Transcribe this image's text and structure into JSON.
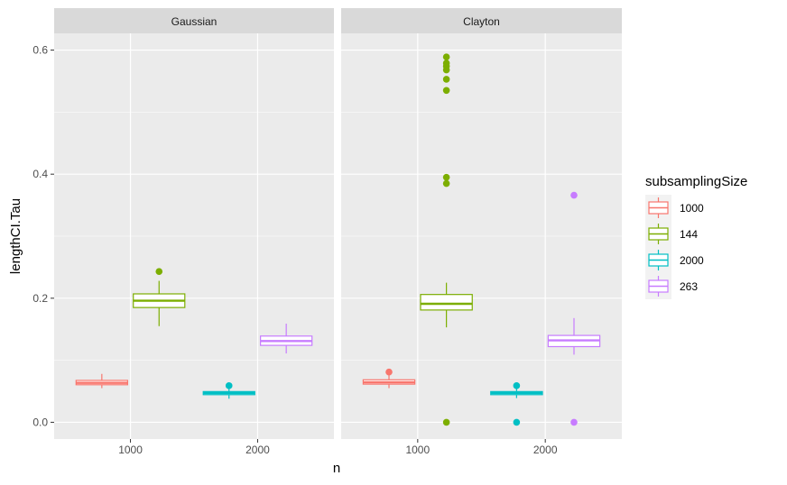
{
  "chart_data": {
    "type": "boxplot",
    "xlabel": "n",
    "ylabel": "lengthCI.Tau",
    "ylim": [
      -0.027,
      0.627
    ],
    "yticks": [
      0.0,
      0.2,
      0.4,
      0.6
    ],
    "ytick_labels": [
      "0.0",
      "0.2",
      "0.4",
      "0.6"
    ],
    "xticks": [
      "1000",
      "2000"
    ],
    "legend": {
      "title": "subsamplingSize",
      "position": "right",
      "entries": [
        {
          "label": "1000",
          "color": "#F8766D"
        },
        {
          "label": "144",
          "color": "#7CAE00"
        },
        {
          "label": "2000",
          "color": "#00BFC4"
        },
        {
          "label": "263",
          "color": "#C77CFF"
        }
      ]
    },
    "panels": [
      {
        "name": "Gaussian",
        "boxes": [
          {
            "n": "1000",
            "group": "1000",
            "min": 0.055,
            "q1": 0.0605,
            "median": 0.0635,
            "q3": 0.0675,
            "max": 0.078,
            "outliers": []
          },
          {
            "n": "1000",
            "group": "144",
            "min": 0.155,
            "q1": 0.185,
            "median": 0.196,
            "q3": 0.207,
            "max": 0.228,
            "outliers": [
              0.243
            ]
          },
          {
            "n": "2000",
            "group": "2000",
            "min": 0.038,
            "q1": 0.0445,
            "median": 0.047,
            "q3": 0.0495,
            "max": 0.055,
            "outliers": [
              0.059
            ]
          },
          {
            "n": "2000",
            "group": "263",
            "min": 0.111,
            "q1": 0.124,
            "median": 0.131,
            "q3": 0.139,
            "max": 0.159,
            "outliers": []
          }
        ]
      },
      {
        "name": "Clayton",
        "boxes": [
          {
            "n": "1000",
            "group": "1000",
            "min": 0.055,
            "q1": 0.0615,
            "median": 0.0645,
            "q3": 0.0685,
            "max": 0.076,
            "outliers": [
              0.081
            ]
          },
          {
            "n": "1000",
            "group": "144",
            "min": 0.153,
            "q1": 0.181,
            "median": 0.191,
            "q3": 0.206,
            "max": 0.225,
            "outliers": [
              0.0,
              0.385,
              0.395,
              0.535,
              0.553,
              0.568,
              0.574,
              0.579,
              0.589
            ]
          },
          {
            "n": "2000",
            "group": "2000",
            "min": 0.039,
            "q1": 0.0445,
            "median": 0.047,
            "q3": 0.0495,
            "max": 0.055,
            "outliers": [
              0.0,
              0.059
            ]
          },
          {
            "n": "2000",
            "group": "263",
            "min": 0.109,
            "q1": 0.122,
            "median": 0.132,
            "q3": 0.14,
            "max": 0.168,
            "outliers": [
              0.0,
              0.366
            ]
          }
        ]
      }
    ]
  }
}
